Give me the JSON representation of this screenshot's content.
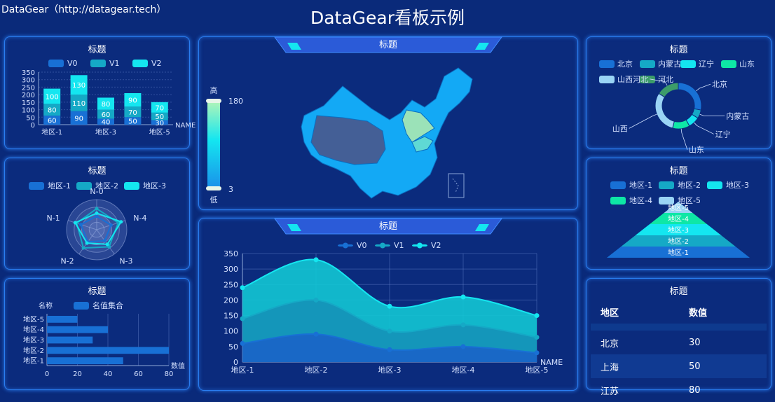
{
  "page": {
    "site": "DataGear（http://datagear.tech）",
    "title": "DataGear看板示例"
  },
  "colors": {
    "c1": "#1870d5",
    "c2": "#15a9c6",
    "c3": "#14e6f0",
    "c4": "#0ee7a6",
    "c5": "#9ad4f5",
    "c6": "#3c9c6a"
  },
  "chart_data": [
    {
      "id": "stacked-bar",
      "type": "bar",
      "title": "标题",
      "stacked": true,
      "categories": [
        "地区-1",
        "地区-2",
        "地区-3",
        "地区-4",
        "地区-5"
      ],
      "tick_labels": [
        "地区-1",
        "地区-3",
        "地区-5"
      ],
      "xlabel": "NAME",
      "ylim": [
        0,
        350
      ],
      "yticks": [
        0,
        50,
        100,
        150,
        200,
        250,
        300,
        350
      ],
      "series": [
        {
          "name": "V0",
          "values": [
            60,
            90,
            40,
            50,
            30
          ]
        },
        {
          "name": "V1",
          "values": [
            80,
            110,
            60,
            70,
            50
          ]
        },
        {
          "name": "V2",
          "values": [
            100,
            130,
            80,
            90,
            70
          ]
        }
      ]
    },
    {
      "id": "radar",
      "type": "radar",
      "title": "标题",
      "indicators": [
        "N-0",
        "N-4",
        "N-3",
        "N-2",
        "N-1"
      ],
      "series": [
        {
          "name": "地区-1",
          "values": [
            0.45,
            0.5,
            0.45,
            0.5,
            0.55
          ]
        },
        {
          "name": "地区-2",
          "values": [
            0.7,
            0.75,
            0.7,
            0.75,
            0.7
          ]
        },
        {
          "name": "地区-3",
          "values": [
            0.55,
            0.85,
            0.6,
            0.55,
            0.75
          ]
        }
      ]
    },
    {
      "id": "hbar",
      "type": "bar",
      "orientation": "horizontal",
      "title": "标题",
      "ylabel": "名称",
      "xlabel": "数值",
      "categories": [
        "地区-1",
        "地区-2",
        "地区-3",
        "地区-4",
        "地区-5"
      ],
      "series": [
        {
          "name": "名值集合",
          "values": [
            50,
            80,
            30,
            40,
            20
          ]
        }
      ],
      "xlim": [
        0,
        80
      ],
      "xticks": [
        0,
        20,
        40,
        60,
        80
      ]
    },
    {
      "id": "map",
      "type": "map",
      "title": "标题",
      "visual_map": {
        "max": 180,
        "min": 3,
        "high_label": "高",
        "low_label": "低"
      }
    },
    {
      "id": "area",
      "type": "area",
      "title": "标题",
      "categories": [
        "地区-1",
        "地区-2",
        "地区-3",
        "地区-4",
        "地区-5"
      ],
      "xlabel": "NAME",
      "ylim": [
        0,
        350
      ],
      "yticks": [
        0,
        50,
        100,
        150,
        200,
        250,
        300,
        350
      ],
      "series": [
        {
          "name": "V0",
          "values": [
            60,
            90,
            40,
            50,
            30
          ]
        },
        {
          "name": "V1",
          "values": [
            140,
            200,
            100,
            120,
            80
          ]
        },
        {
          "name": "V2",
          "values": [
            240,
            330,
            180,
            210,
            150
          ]
        }
      ]
    },
    {
      "id": "donut",
      "type": "pie",
      "title": "标题",
      "categories": [
        "北京",
        "内蒙古",
        "辽宁",
        "山东",
        "山西",
        "河北"
      ],
      "values": [
        28,
        6,
        8,
        12,
        30,
        16
      ]
    },
    {
      "id": "funnel",
      "type": "funnel",
      "title": "标题",
      "legend": [
        "地区-1",
        "地区-2",
        "地区-3",
        "地区-4",
        "地区-5"
      ],
      "levels": [
        "地区-1",
        "地区-2",
        "地区-3",
        "地区-4",
        "地区-5"
      ]
    },
    {
      "id": "table",
      "type": "table",
      "title": "标题",
      "columns": [
        "地区",
        "数值"
      ],
      "rows": [
        [
          "北京",
          "30"
        ],
        [
          "上海",
          "50"
        ],
        [
          "江苏",
          "80"
        ]
      ]
    }
  ]
}
